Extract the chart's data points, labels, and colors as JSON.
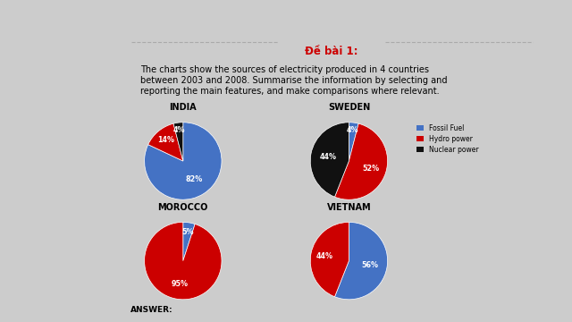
{
  "title": "Đề bài 1:",
  "description": "The charts show the sources of electricity produced in 4 countries\nbetween 2003 and 2008. Summarise the information by selecting and\nreporting the main features, and make comparisons where relevant.",
  "countries": [
    "INDIA",
    "SWEDEN",
    "MOROCCO",
    "VIETNAM"
  ],
  "all_slices": {
    "INDIA": [
      82,
      14,
      4
    ],
    "SWEDEN": [
      4,
      52,
      44
    ],
    "MOROCCO": [
      5,
      95
    ],
    "VIETNAM": [
      56,
      44
    ]
  },
  "all_labels": {
    "INDIA": [
      "82%",
      "14%",
      "4%"
    ],
    "SWEDEN": [
      "4%",
      "52%",
      "44%"
    ],
    "MOROCCO": [
      "5%",
      "95%"
    ],
    "VIETNAM": [
      "56%",
      "44%"
    ]
  },
  "colors": [
    "#4472C4",
    "#CC0000",
    "#111111"
  ],
  "legend_labels": [
    "Fossil Fuel",
    "Hydro power",
    "Nuclear power"
  ],
  "background_color": "#FFFFFF",
  "answer_bg": "#00FFFF",
  "answer_text": "ANSWER:",
  "header_color": "#CC0000",
  "outer_bg": "#CCCCCC",
  "dashed_line_color": "#AAAAAA"
}
